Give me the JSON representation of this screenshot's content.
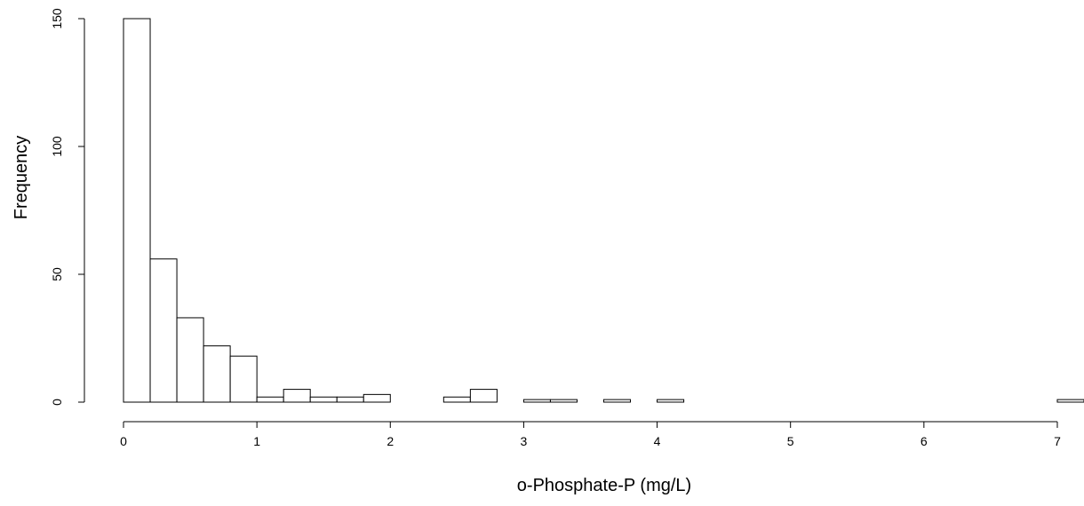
{
  "chart_data": {
    "type": "bar",
    "title": "",
    "xlabel": "o-Phosphate-P (mg/L)",
    "ylabel": "Frequency",
    "bin_edges": [
      0.0,
      0.2,
      0.4,
      0.6,
      0.8,
      1.0,
      1.2,
      1.4,
      1.6,
      1.8,
      2.0,
      2.2,
      2.4,
      2.6,
      2.8,
      3.0,
      3.2,
      3.4,
      3.6,
      3.8,
      4.0,
      4.2,
      4.4,
      4.6,
      4.8,
      5.0,
      5.2,
      5.4,
      5.6,
      5.8,
      6.0,
      6.2,
      6.4,
      6.6,
      6.8,
      7.0,
      7.2
    ],
    "values": [
      150,
      56,
      33,
      22,
      18,
      2,
      5,
      2,
      2,
      3,
      0,
      0,
      2,
      5,
      0,
      1,
      1,
      0,
      1,
      0,
      1,
      0,
      0,
      0,
      0,
      0,
      0,
      0,
      0,
      0,
      0,
      0,
      0,
      0,
      0,
      1
    ],
    "xlim": [
      0,
      7.2
    ],
    "ylim": [
      0,
      150
    ],
    "xticks": [
      0,
      1,
      2,
      3,
      4,
      5,
      6,
      7
    ],
    "yticks": [
      0,
      50,
      100,
      150
    ],
    "grid": false,
    "bar_fill": "#ffffff",
    "bar_stroke": "#000000"
  }
}
